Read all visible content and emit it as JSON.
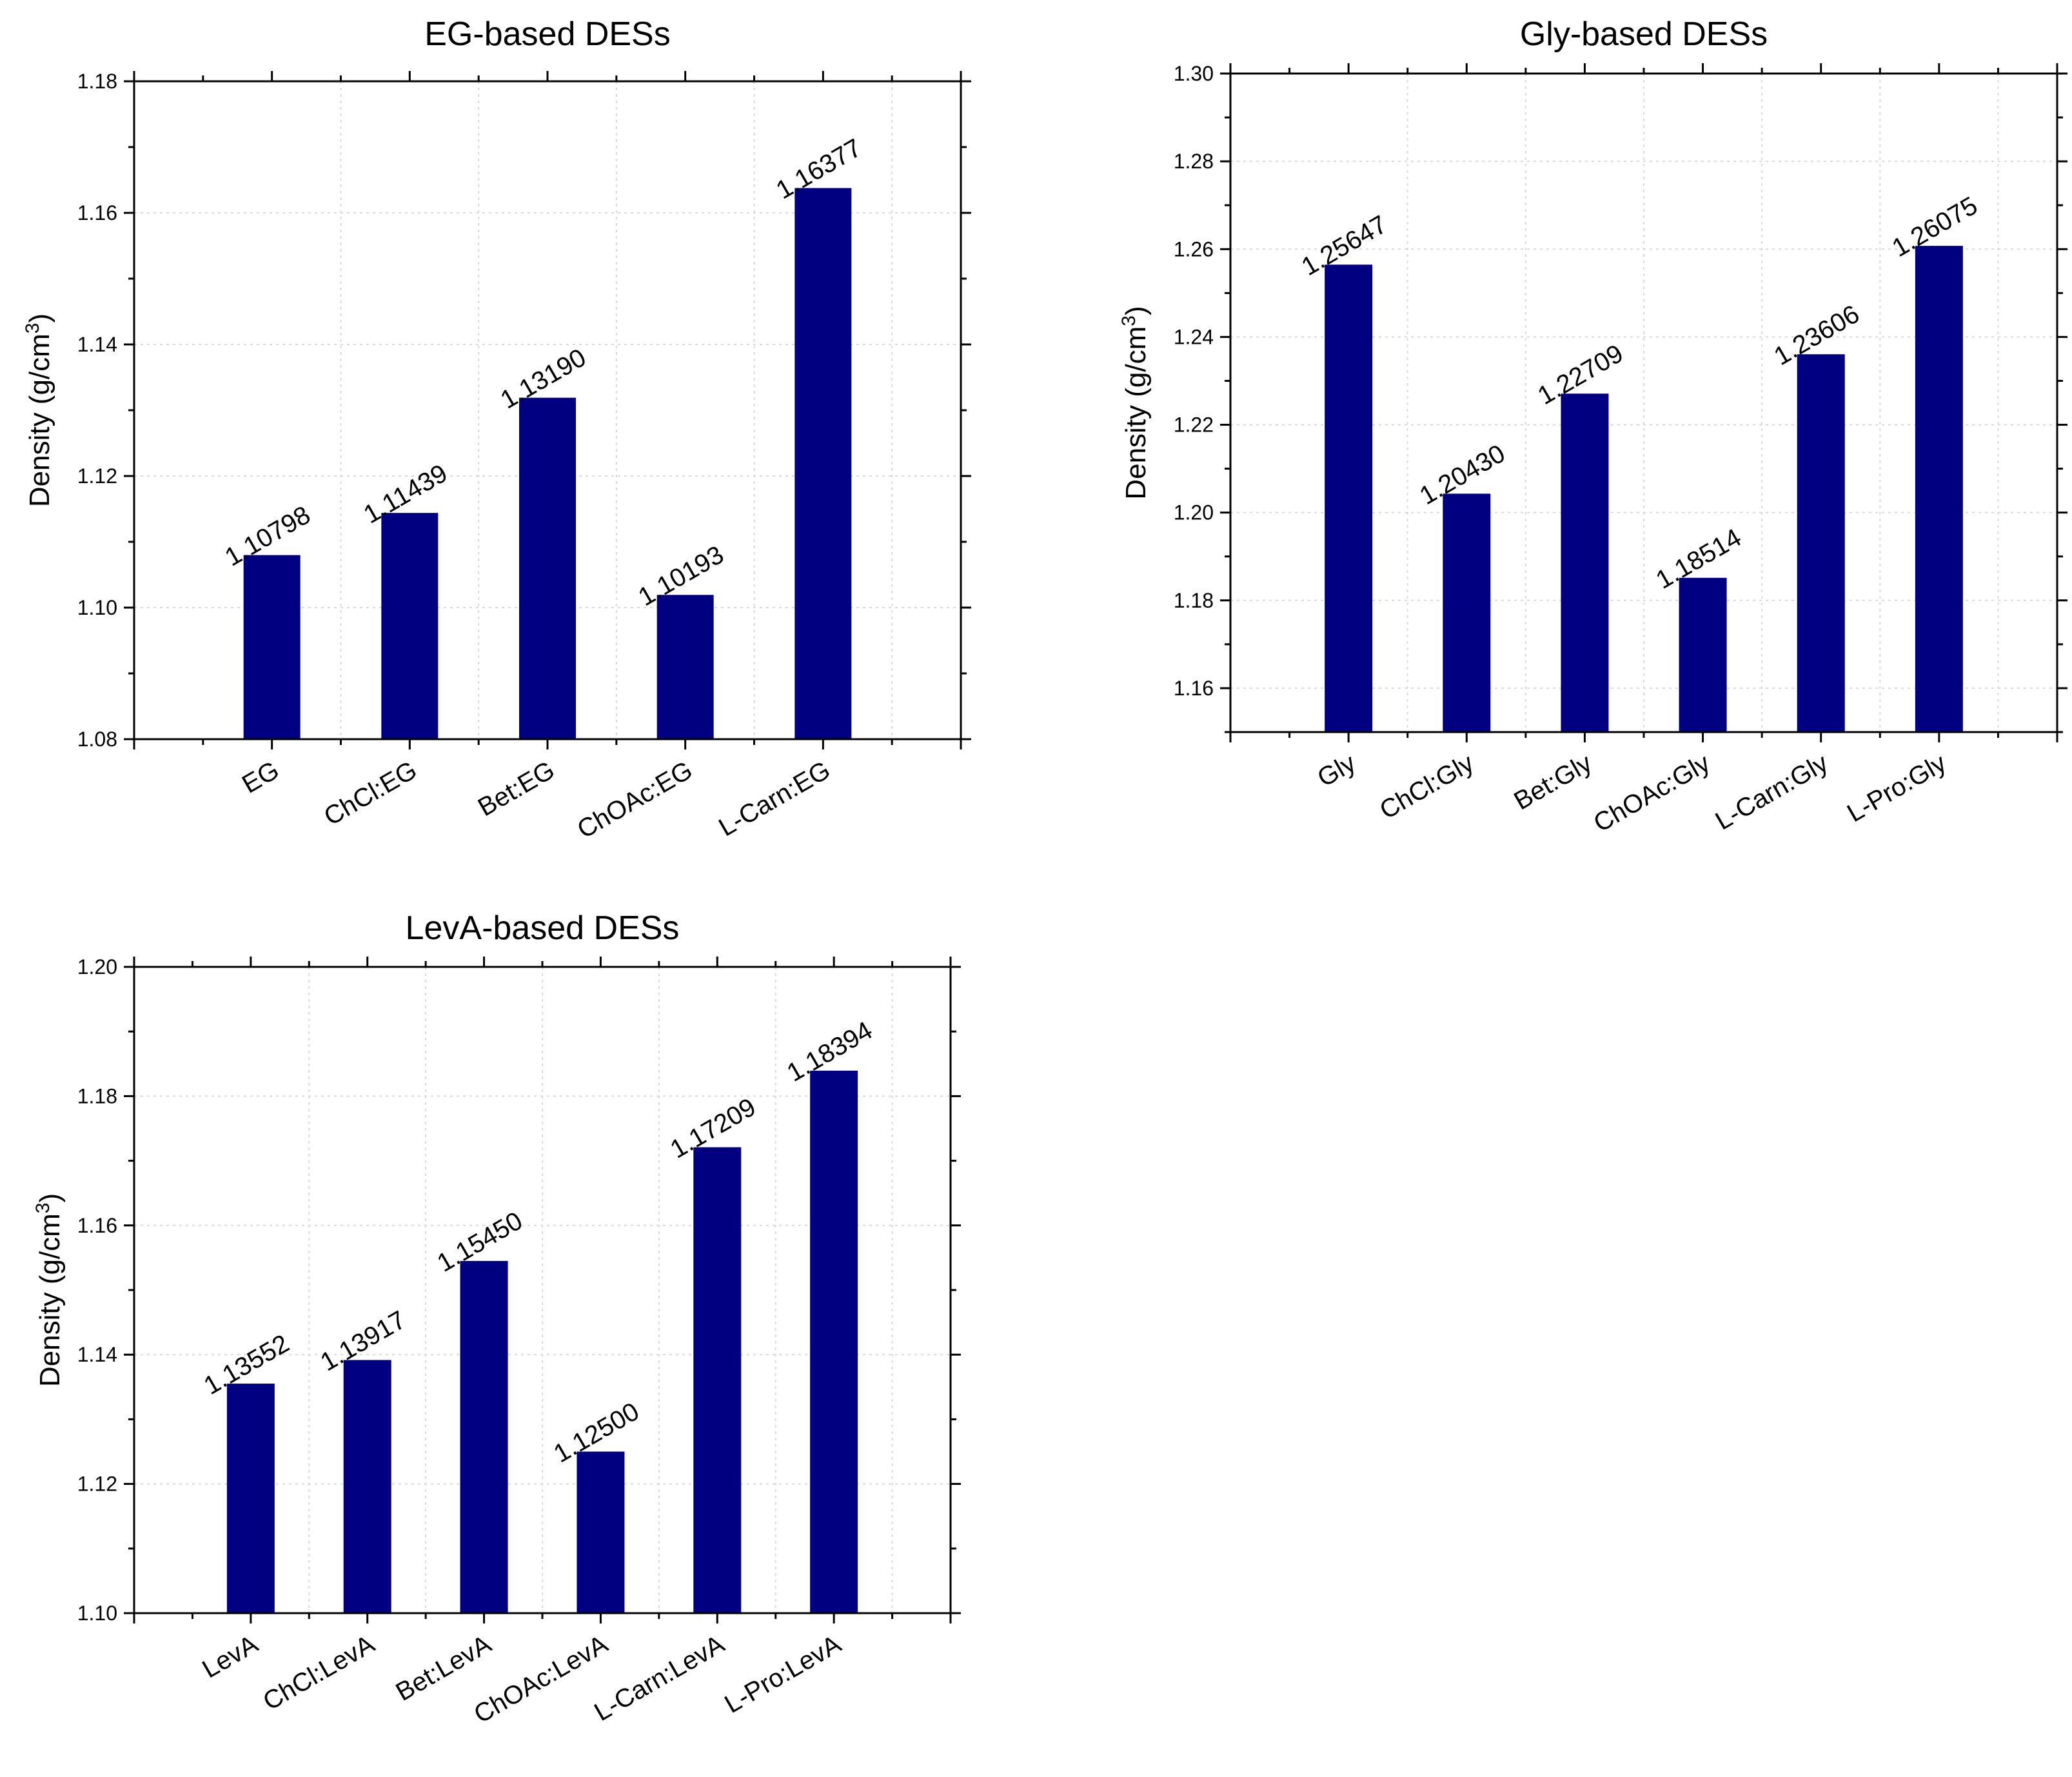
{
  "figure": {
    "ylabel_text": "Density (g/cm",
    "ylabel_sup": "3",
    "ylabel_close": ")"
  },
  "chart_data": [
    {
      "type": "bar",
      "title": "EG-based DESs",
      "xlabel": "",
      "ylabel": "Density (g/cm3)",
      "categories": [
        "EG",
        "ChCl:EG",
        "Bet:EG",
        "ChOAc:EG",
        "L-Carn:EG"
      ],
      "values": [
        1.10798,
        1.11439,
        1.1319,
        1.10193,
        1.16377
      ],
      "value_labels": [
        "1.10798",
        "1.11439",
        "1.13190",
        "1.10193",
        "1.16377"
      ],
      "ylim": [
        1.08,
        1.18
      ],
      "ytick_values": [
        1.08,
        1.1,
        1.12,
        1.14,
        1.16,
        1.18
      ],
      "ytick_labels": [
        "1.08",
        "1.10",
        "1.12",
        "1.14",
        "1.16",
        "1.18"
      ],
      "grid": true,
      "bar_color": "#000080"
    },
    {
      "type": "bar",
      "title": "Gly-based DESs",
      "xlabel": "",
      "ylabel": "Density (g/cm3)",
      "categories": [
        "Gly",
        "ChCl:Gly",
        "Bet:Gly",
        "ChOAc:Gly",
        "L-Carn:Gly",
        "L-Pro:Gly"
      ],
      "values": [
        1.25647,
        1.2043,
        1.22709,
        1.18514,
        1.23606,
        1.26075
      ],
      "value_labels": [
        "1.25647",
        "1.20430",
        "1.22709",
        "1.18514",
        "1.23606",
        "1.26075"
      ],
      "ylim": [
        1.15,
        1.3
      ],
      "ytick_values": [
        1.16,
        1.18,
        1.2,
        1.22,
        1.24,
        1.26,
        1.28,
        1.3
      ],
      "ytick_labels": [
        "1.16",
        "1.18",
        "1.20",
        "1.22",
        "1.24",
        "1.26",
        "1.28",
        "1.30"
      ],
      "grid": true,
      "bar_color": "#000080"
    },
    {
      "type": "bar",
      "title": "LevA-based DESs",
      "xlabel": "",
      "ylabel": "Density (g/cm3)",
      "categories": [
        "LevA",
        "ChCl:LevA",
        "Bet:LevA",
        "ChOAc:LevA",
        "L-Carn:LevA",
        "L-Pro:LevA"
      ],
      "values": [
        1.13552,
        1.13917,
        1.1545,
        1.125,
        1.17209,
        1.18394
      ],
      "value_labels": [
        "1.13552",
        "1.13917",
        "1.15450",
        "1.12500",
        "1.17209",
        "1.18394"
      ],
      "ylim": [
        1.1,
        1.2
      ],
      "ytick_values": [
        1.1,
        1.12,
        1.14,
        1.16,
        1.18,
        1.2
      ],
      "ytick_labels": [
        "1.10",
        "1.12",
        "1.14",
        "1.16",
        "1.18",
        "1.20"
      ],
      "grid": true,
      "bar_color": "#000080"
    }
  ]
}
